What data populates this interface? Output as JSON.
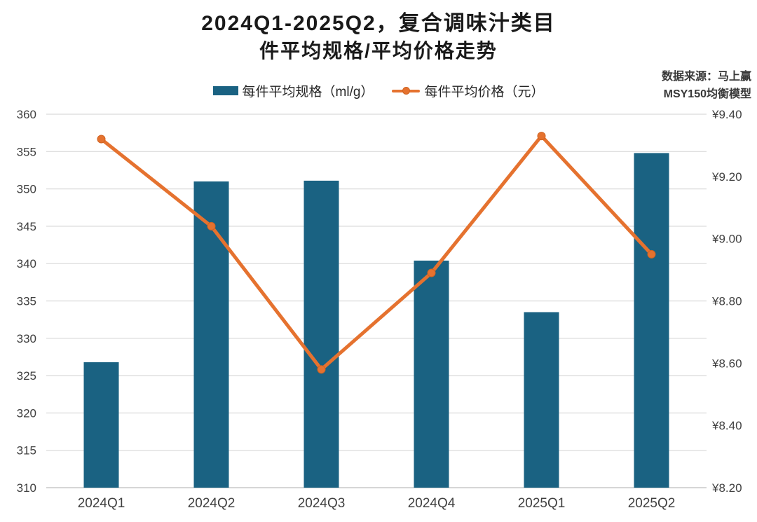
{
  "title": {
    "line1": "2024Q1-2025Q2，复合调味汁类目",
    "line2": "件平均规格/平均价格走势"
  },
  "source": {
    "line1": "数据来源：马上赢",
    "line2": "MSY150均衡模型"
  },
  "legend": {
    "items": [
      {
        "label": "每件平均规格（ml/g）",
        "swatch": "bar"
      },
      {
        "label": "每件平均价格（元）",
        "swatch": "line-marker"
      }
    ]
  },
  "colors": {
    "bar": "#1A6282",
    "line": "#E5722F",
    "marker_stroke": "#CF6322",
    "grid": "#D9D9D9",
    "axis_line": "#C9C9C9",
    "axis_text": "#404040"
  },
  "chart_data": {
    "type": "bar",
    "subtype": "combo-bar-line",
    "title": "2024Q1-2025Q2，复合调味汁类目 件平均规格/平均价格走势",
    "categories": [
      "2024Q1",
      "2024Q2",
      "2024Q3",
      "2024Q4",
      "2025Q1",
      "2025Q2"
    ],
    "series": [
      {
        "name": "每件平均规格（ml/g）",
        "type": "bar",
        "axis": "left",
        "values": [
          326.8,
          351.0,
          351.1,
          340.4,
          333.5,
          354.8
        ]
      },
      {
        "name": "每件平均价格（元）",
        "type": "line",
        "axis": "right",
        "values": [
          9.32,
          9.04,
          8.58,
          8.89,
          9.33,
          8.95
        ]
      }
    ],
    "left_axis": {
      "min": 310,
      "max": 360,
      "step": 5,
      "tick_labels": [
        "310",
        "315",
        "320",
        "325",
        "330",
        "335",
        "340",
        "345",
        "350",
        "355",
        "360"
      ]
    },
    "right_axis": {
      "min": 8.2,
      "max": 9.4,
      "step": 0.2,
      "tick_labels": [
        "¥8.20",
        "¥8.40",
        "¥8.60",
        "¥8.80",
        "¥9.00",
        "¥9.20",
        "¥9.40"
      ]
    },
    "grid": "horizontal",
    "legend_position": "top"
  }
}
